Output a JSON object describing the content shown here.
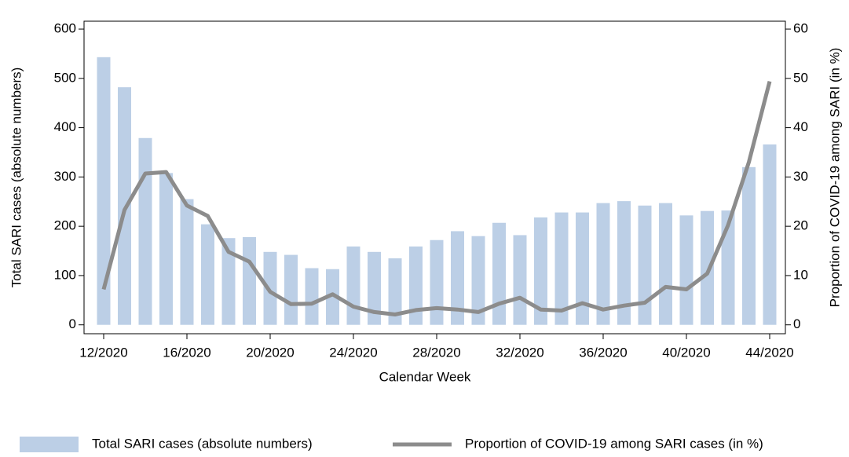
{
  "chart_data": {
    "type": "bar-line",
    "xlabel": "Calendar Week",
    "ylabel": "Total SARI cases (absolute numbers)",
    "y2label": "Proportion of COVID-19 among SARI (in %)",
    "categories": [
      "12/2020",
      null,
      null,
      null,
      "16/2020",
      null,
      null,
      null,
      "20/2020",
      null,
      null,
      null,
      "24/2020",
      null,
      null,
      null,
      "28/2020",
      null,
      null,
      null,
      "32/2020",
      null,
      null,
      null,
      "36/2020",
      null,
      null,
      null,
      "40/2020",
      null,
      null,
      null,
      "44/2020"
    ],
    "series": [
      {
        "name": "Total SARI cases (absolute numbers)",
        "type": "bar",
        "color": "#bccfe6",
        "values": [
          543,
          482,
          379,
          308,
          255,
          204,
          176,
          178,
          148,
          142,
          115,
          113,
          159,
          148,
          135,
          159,
          172,
          190,
          180,
          207,
          182,
          218,
          228,
          228,
          247,
          251,
          242,
          247,
          222,
          231,
          232,
          320,
          366
        ]
      },
      {
        "name": "Proportion of COVID-19 among SARI cases (in %)",
        "type": "line",
        "axis": "y2",
        "color": "#8c8c8c",
        "values": [
          7.2,
          23.3,
          30.7,
          31,
          24.2,
          22.1,
          14.8,
          12.8,
          6.7,
          4.2,
          4.3,
          6.2,
          3.7,
          2.6,
          2.1,
          3.0,
          3.4,
          3.1,
          2.6,
          4.3,
          5.5,
          3.1,
          2.9,
          4.4,
          3.1,
          3.9,
          4.5,
          7.7,
          7.2,
          10.4,
          20.2,
          33,
          49.4
        ]
      }
    ],
    "ylim": [
      -18,
      616
    ],
    "yticks": [
      0,
      100,
      200,
      300,
      400,
      500,
      600
    ],
    "y2lim": [
      -1.8,
      61.6
    ],
    "y2ticks": [
      0,
      10,
      20,
      30,
      40,
      50,
      60
    ]
  }
}
